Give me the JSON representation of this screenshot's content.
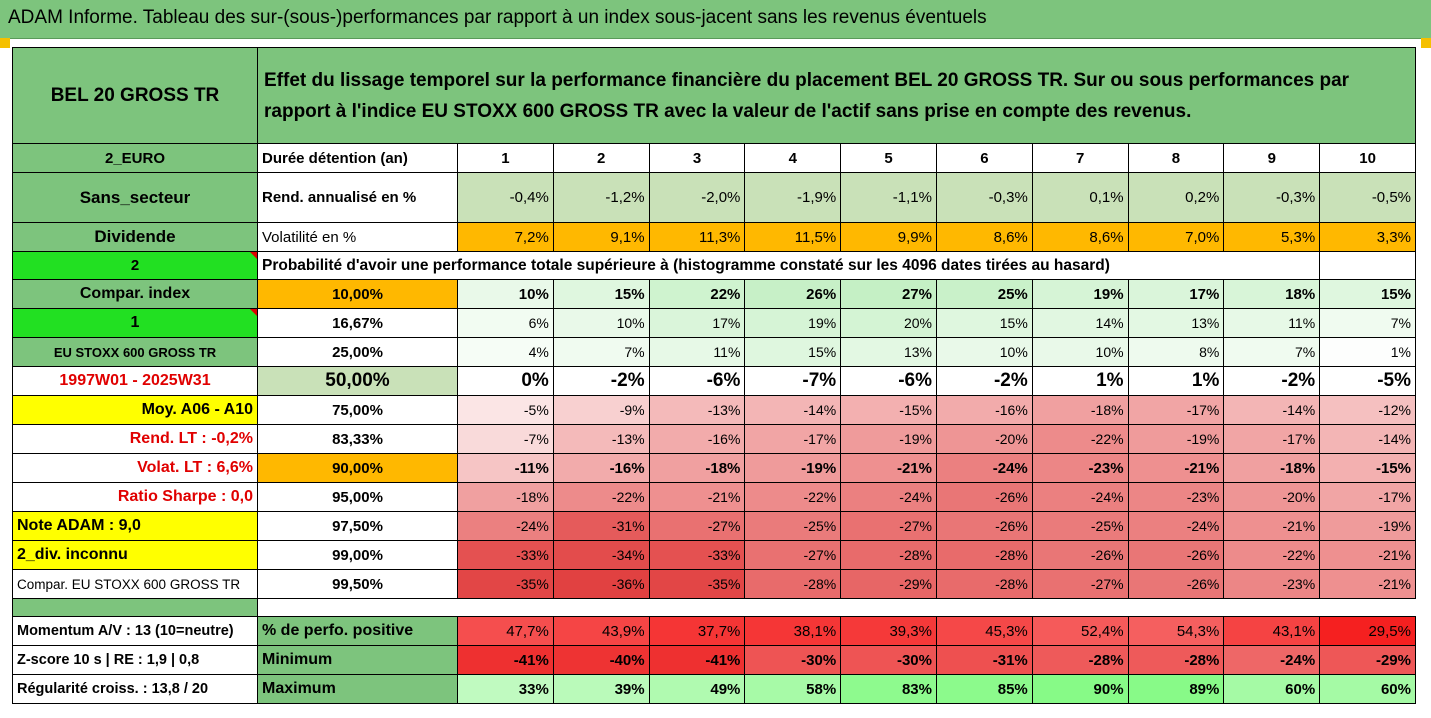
{
  "title": "ADAM Informe. Tableau des sur-(sous-)performances par rapport à un index sous-jacent sans les revenus éventuels",
  "header": {
    "asset": "BEL 20 GROSS TR",
    "description": "Effet du lissage temporel sur la performance financière du placement BEL 20 GROSS TR. Sur ou sous performances par rapport à l'indice EU STOXX 600 GROSS TR avec la valeur de l'actif sans prise en compte des revenus."
  },
  "duration_row": {
    "side": "2_EURO",
    "label": "Durée détention (an)",
    "years": [
      "1",
      "2",
      "3",
      "4",
      "5",
      "6",
      "7",
      "8",
      "9",
      "10"
    ]
  },
  "return_row": {
    "side": "Sans_secteur",
    "label": "Rend. annualisé en %",
    "values": [
      "-0,4%",
      "-1,2%",
      "-2,0%",
      "-1,9%",
      "-1,1%",
      "-0,3%",
      "0,1%",
      "0,2%",
      "-0,3%",
      "-0,5%"
    ]
  },
  "volatility_row": {
    "side": "Dividende",
    "label": "Volatilité en %",
    "values": [
      "7,2%",
      "9,1%",
      "11,3%",
      "11,5%",
      "9,9%",
      "8,6%",
      "8,6%",
      "7,0%",
      "5,3%",
      "3,3%"
    ]
  },
  "probability_header": {
    "side": "2",
    "label": "Probabilité d'avoir une performance totale supérieure à (histogramme constaté sur les 4096 dates tirées au hasard)"
  },
  "quantile_rows": [
    {
      "side": "Compar. index",
      "q": "10,00%",
      "values": [
        "10%",
        "15%",
        "22%",
        "26%",
        "27%",
        "25%",
        "19%",
        "17%",
        "18%",
        "15%"
      ]
    },
    {
      "side": "1",
      "q": "16,67%",
      "values": [
        "6%",
        "10%",
        "17%",
        "19%",
        "20%",
        "15%",
        "14%",
        "13%",
        "11%",
        "7%"
      ]
    },
    {
      "side": "EU STOXX 600 GROSS TR",
      "q": "25,00%",
      "values": [
        "4%",
        "7%",
        "11%",
        "15%",
        "13%",
        "10%",
        "10%",
        "8%",
        "7%",
        "1%"
      ]
    },
    {
      "side": "1997W01 - 2025W31",
      "q": "50,00%",
      "values": [
        "0%",
        "-2%",
        "-6%",
        "-7%",
        "-6%",
        "-2%",
        "1%",
        "1%",
        "-2%",
        "-5%"
      ]
    },
    {
      "side": "Moy. A06 - A10",
      "q": "75,00%",
      "values": [
        "-5%",
        "-9%",
        "-13%",
        "-14%",
        "-15%",
        "-16%",
        "-18%",
        "-17%",
        "-14%",
        "-12%"
      ]
    },
    {
      "side": "Rend. LT :   -0,2%",
      "q": "83,33%",
      "values": [
        "-7%",
        "-13%",
        "-16%",
        "-17%",
        "-19%",
        "-20%",
        "-22%",
        "-19%",
        "-17%",
        "-14%"
      ]
    },
    {
      "side": "Volat. LT :   6,6%",
      "q": "90,00%",
      "values": [
        "-11%",
        "-16%",
        "-18%",
        "-19%",
        "-21%",
        "-24%",
        "-23%",
        "-21%",
        "-18%",
        "-15%"
      ]
    },
    {
      "side": "Ratio Sharpe :   0,0",
      "q": "95,00%",
      "values": [
        "-18%",
        "-22%",
        "-21%",
        "-22%",
        "-24%",
        "-26%",
        "-24%",
        "-23%",
        "-20%",
        "-17%"
      ]
    },
    {
      "side": "Note ADAM : 9,0",
      "q": "97,50%",
      "values": [
        "-24%",
        "-31%",
        "-27%",
        "-25%",
        "-27%",
        "-26%",
        "-25%",
        "-24%",
        "-21%",
        "-19%"
      ]
    },
    {
      "side": "2_div. inconnu",
      "q": "99,00%",
      "values": [
        "-33%",
        "-34%",
        "-33%",
        "-27%",
        "-28%",
        "-28%",
        "-26%",
        "-26%",
        "-22%",
        "-21%"
      ]
    },
    {
      "side": "Compar. EU STOXX 600 GROSS TR",
      "q": "99,50%",
      "values": [
        "-35%",
        "-36%",
        "-35%",
        "-28%",
        "-29%",
        "-28%",
        "-27%",
        "-26%",
        "-23%",
        "-21%"
      ]
    }
  ],
  "stats_rows": [
    {
      "side": "Momentum A/V : 13 (10=neutre)",
      "label": "% de perfo. positive",
      "values": [
        "47,7%",
        "43,9%",
        "37,7%",
        "38,1%",
        "39,3%",
        "45,3%",
        "52,4%",
        "54,3%",
        "43,1%",
        "29,5%"
      ]
    },
    {
      "side": "Z-score 10 s  |  RE : 1,9  |  0,8",
      "label": "Minimum",
      "values": [
        "-41%",
        "-40%",
        "-41%",
        "-30%",
        "-30%",
        "-31%",
        "-28%",
        "-28%",
        "-24%",
        "-29%"
      ]
    },
    {
      "side": "Régularité croiss. : 13,8 / 20",
      "label": "Maximum",
      "values": [
        "33%",
        "39%",
        "49%",
        "58%",
        "83%",
        "85%",
        "90%",
        "89%",
        "60%",
        "60%"
      ]
    }
  ],
  "colors": {
    "green_header": "#7dc47d",
    "light_green": "#c9e1b8",
    "orange": "#ffb800",
    "yellow": "#ffff00",
    "bright_green": "#22e022",
    "red_text": "#e00000"
  }
}
